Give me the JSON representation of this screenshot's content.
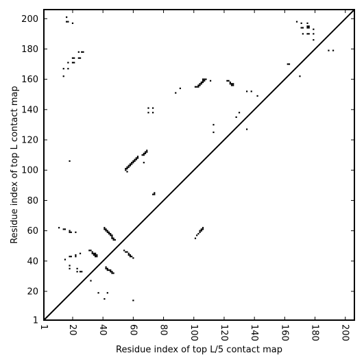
{
  "chart_data": {
    "type": "scatter",
    "xlabel": "Residue index of top L/5 contact map",
    "ylabel": "Residue index of top L contact map",
    "xlim": [
      1,
      206
    ],
    "ylim": [
      1,
      206
    ],
    "xticks": [
      1,
      20,
      40,
      60,
      80,
      100,
      120,
      140,
      160,
      180,
      200
    ],
    "xtick_labels": [
      "1",
      "20",
      "40",
      "60",
      "80",
      "100",
      "120",
      "140",
      "160",
      "180",
      "200"
    ],
    "yticks": [
      1,
      20,
      40,
      60,
      80,
      100,
      120,
      140,
      160,
      180,
      200
    ],
    "ytick_labels": [
      "1",
      "20",
      "40",
      "60",
      "80",
      "100",
      "120",
      "140",
      "160",
      "180",
      "200"
    ],
    "diagonal": true,
    "grid": false,
    "marker_color": "#000000",
    "lower_triangle_points": [
      [
        15,
        41
      ],
      [
        18,
        43
      ],
      [
        19,
        43
      ],
      [
        22,
        43
      ],
      [
        22,
        44
      ],
      [
        25,
        45
      ],
      [
        18,
        37
      ],
      [
        18,
        35
      ],
      [
        23,
        35
      ],
      [
        23,
        33
      ],
      [
        25,
        33
      ],
      [
        26,
        33
      ],
      [
        31,
        47
      ],
      [
        32,
        47
      ],
      [
        33,
        46
      ],
      [
        33,
        45
      ],
      [
        34,
        45
      ],
      [
        34,
        44
      ],
      [
        35,
        45
      ],
      [
        35,
        44
      ],
      [
        35,
        43
      ],
      [
        36,
        43
      ],
      [
        36,
        44
      ],
      [
        42,
        36
      ],
      [
        42,
        35
      ],
      [
        43,
        35
      ],
      [
        43,
        34
      ],
      [
        44,
        34
      ],
      [
        45,
        34
      ],
      [
        45,
        33
      ],
      [
        46,
        33
      ],
      [
        46,
        32
      ],
      [
        47,
        32
      ],
      [
        41,
        62
      ],
      [
        41,
        61
      ],
      [
        42,
        61
      ],
      [
        42,
        60
      ],
      [
        43,
        60
      ],
      [
        43,
        59
      ],
      [
        44,
        59
      ],
      [
        44,
        58
      ],
      [
        45,
        58
      ],
      [
        45,
        57
      ],
      [
        46,
        57
      ],
      [
        46,
        56
      ],
      [
        46,
        55
      ],
      [
        47,
        55
      ],
      [
        47,
        54
      ],
      [
        48,
        54
      ],
      [
        11,
        62
      ],
      [
        14,
        61
      ],
      [
        15,
        61
      ],
      [
        18,
        60
      ],
      [
        18,
        59
      ],
      [
        19,
        59
      ],
      [
        22,
        59
      ],
      [
        32,
        27
      ],
      [
        37,
        19
      ],
      [
        41,
        15
      ],
      [
        43,
        19
      ],
      [
        60,
        14
      ],
      [
        54,
        47
      ],
      [
        55,
        46
      ],
      [
        56,
        46
      ],
      [
        57,
        45
      ],
      [
        57,
        44
      ],
      [
        58,
        44
      ],
      [
        58,
        43
      ],
      [
        59,
        43
      ],
      [
        60,
        42
      ],
      [
        101,
        55
      ],
      [
        102,
        57
      ],
      [
        103,
        58
      ],
      [
        104,
        59
      ],
      [
        104,
        60
      ],
      [
        105,
        60
      ],
      [
        105,
        61
      ],
      [
        106,
        61
      ],
      [
        106,
        62
      ]
    ],
    "upper_triangle_points": [
      [
        16,
        201
      ],
      [
        16,
        198
      ],
      [
        17,
        198
      ],
      [
        20,
        197
      ],
      [
        17,
        171
      ],
      [
        20,
        171
      ],
      [
        21,
        171
      ],
      [
        20,
        174
      ],
      [
        21,
        174
      ],
      [
        24,
        174
      ],
      [
        25,
        174
      ],
      [
        24,
        178
      ],
      [
        26,
        178
      ],
      [
        27,
        178
      ],
      [
        14,
        167
      ],
      [
        17,
        167
      ],
      [
        14,
        162
      ],
      [
        18,
        106
      ],
      [
        55,
        101
      ],
      [
        55,
        100
      ],
      [
        56,
        101
      ],
      [
        56,
        102
      ],
      [
        57,
        102
      ],
      [
        57,
        103
      ],
      [
        58,
        103
      ],
      [
        58,
        104
      ],
      [
        59,
        104
      ],
      [
        59,
        105
      ],
      [
        60,
        105
      ],
      [
        60,
        106
      ],
      [
        61,
        106
      ],
      [
        61,
        107
      ],
      [
        62,
        107
      ],
      [
        62,
        108
      ],
      [
        63,
        108
      ],
      [
        63,
        109
      ],
      [
        66,
        110
      ],
      [
        67,
        110
      ],
      [
        67,
        111
      ],
      [
        68,
        111
      ],
      [
        68,
        112
      ],
      [
        69,
        112
      ],
      [
        69,
        113
      ],
      [
        67,
        105
      ],
      [
        56,
        99
      ],
      [
        70,
        141
      ],
      [
        70,
        138
      ],
      [
        73,
        141
      ],
      [
        73,
        138
      ],
      [
        73,
        84
      ],
      [
        74,
        84
      ],
      [
        74,
        85
      ],
      [
        88,
        151
      ],
      [
        91,
        154
      ],
      [
        101,
        155
      ],
      [
        102,
        155
      ],
      [
        103,
        155
      ],
      [
        103,
        156
      ],
      [
        104,
        156
      ],
      [
        104,
        157
      ],
      [
        105,
        157
      ],
      [
        105,
        158
      ],
      [
        106,
        158
      ],
      [
        106,
        159
      ],
      [
        107,
        159
      ],
      [
        107,
        160
      ],
      [
        108,
        160
      ],
      [
        106,
        160
      ],
      [
        111,
        159
      ],
      [
        113,
        130
      ],
      [
        113,
        125
      ],
      [
        128,
        135
      ],
      [
        130,
        138
      ],
      [
        122,
        159
      ],
      [
        123,
        159
      ],
      [
        124,
        158
      ],
      [
        124,
        157
      ],
      [
        125,
        157
      ],
      [
        125,
        156
      ],
      [
        126,
        156
      ],
      [
        126,
        157
      ],
      [
        135,
        152
      ],
      [
        138,
        152
      ],
      [
        142,
        149
      ],
      [
        135,
        127
      ],
      [
        162,
        170
      ],
      [
        163,
        170
      ],
      [
        170,
        162
      ],
      [
        168,
        198
      ],
      [
        171,
        197
      ],
      [
        171,
        194
      ],
      [
        172,
        194
      ],
      [
        172,
        190
      ],
      [
        175,
        197
      ],
      [
        175,
        195
      ],
      [
        176,
        195
      ],
      [
        175,
        194
      ],
      [
        176,
        194
      ],
      [
        175,
        190
      ],
      [
        176,
        190
      ],
      [
        179,
        193
      ],
      [
        179,
        190
      ],
      [
        179,
        186
      ],
      [
        189,
        179
      ],
      [
        192,
        179
      ]
    ]
  }
}
